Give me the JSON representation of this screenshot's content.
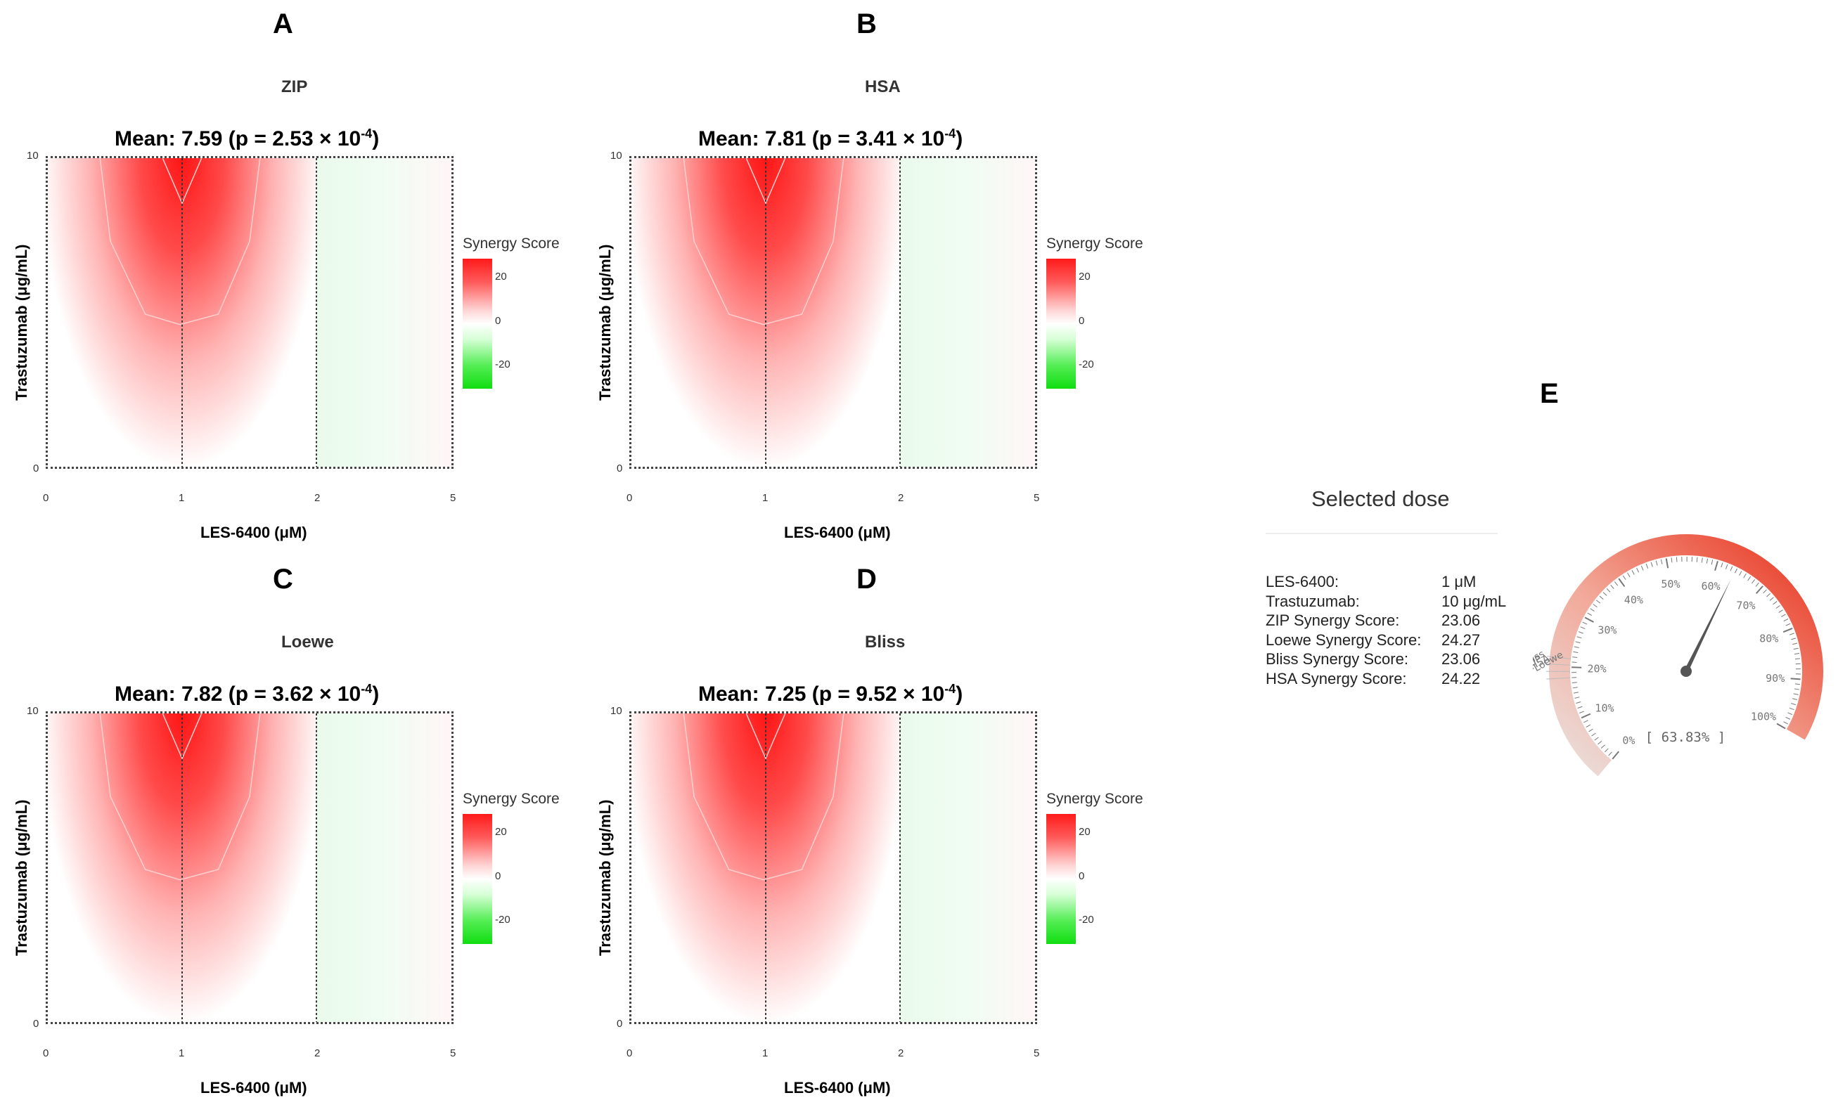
{
  "panels": [
    {
      "letter": "A",
      "method": "ZIP",
      "mean_text": "Mean: 7.59 (p = 2.53 × 10",
      "mean_exp": "-4",
      "mean_close": ")"
    },
    {
      "letter": "B",
      "method": "HSA",
      "mean_text": "Mean: 7.81 (p = 3.41 × 10",
      "mean_exp": "-4",
      "mean_close": ")"
    },
    {
      "letter": "C",
      "method": "Loewe",
      "mean_text": "Mean: 7.82 (p = 3.62 × 10",
      "mean_exp": "-4",
      "mean_close": ")"
    },
    {
      "letter": "D",
      "method": "Bliss",
      "mean_text": "Mean: 7.25 (p = 9.52 × 10",
      "mean_exp": "-4",
      "mean_close": ")"
    }
  ],
  "axes": {
    "xlabel": "LES-6400 (μM)",
    "ylabel": "Trastuzumab (μg/mL)",
    "x_ticks": [
      "0",
      "1",
      "2",
      "5"
    ],
    "y_ticks": [
      "0",
      "10"
    ],
    "legend_title": "Synergy Score",
    "legend_ticks": [
      "20",
      "0",
      "-20"
    ]
  },
  "chart_data": [
    {
      "type": "heatmap",
      "title": "ZIP",
      "subtitle": "Mean: 7.59 (p = 2.53 × 10^-4)",
      "xlabel": "LES-6400 (μM)",
      "ylabel": "Trastuzumab (μg/mL)",
      "x": [
        "0",
        "1",
        "2",
        "5"
      ],
      "y": [
        "0",
        "10"
      ],
      "legend": "Synergy Score",
      "color_range": [
        -20,
        20
      ],
      "max_synergy_at": {
        "x": "1",
        "y": "10"
      }
    },
    {
      "type": "heatmap",
      "title": "HSA",
      "subtitle": "Mean: 7.81 (p = 3.41 × 10^-4)",
      "xlabel": "LES-6400 (μM)",
      "ylabel": "Trastuzumab (μg/mL)",
      "x": [
        "0",
        "1",
        "2",
        "5"
      ],
      "y": [
        "0",
        "10"
      ],
      "legend": "Synergy Score",
      "color_range": [
        -20,
        20
      ],
      "max_synergy_at": {
        "x": "1",
        "y": "10"
      }
    },
    {
      "type": "heatmap",
      "title": "Loewe",
      "subtitle": "Mean: 7.82 (p = 3.62 × 10^-4)",
      "xlabel": "LES-6400 (μM)",
      "ylabel": "Trastuzumab (μg/mL)",
      "x": [
        "0",
        "1",
        "2",
        "5"
      ],
      "y": [
        "0",
        "10"
      ],
      "legend": "Synergy Score",
      "color_range": [
        -20,
        20
      ],
      "max_synergy_at": {
        "x": "1",
        "y": "10"
      }
    },
    {
      "type": "heatmap",
      "title": "Bliss",
      "subtitle": "Mean: 7.25 (p = 9.52 × 10^-4)",
      "xlabel": "LES-6400 (μM)",
      "ylabel": "Trastuzumab (μg/mL)",
      "x": [
        "0",
        "1",
        "2",
        "5"
      ],
      "y": [
        "0",
        "10"
      ],
      "legend": "Synergy Score",
      "color_range": [
        -20,
        20
      ],
      "max_synergy_at": {
        "x": "1",
        "y": "10"
      }
    }
  ],
  "panel_e": {
    "letter": "E",
    "title": "Selected dose",
    "rows": [
      {
        "label": "LES-6400:",
        "value": "1 μM"
      },
      {
        "label": "Trastuzumab:",
        "value": "10 μg/mL"
      },
      {
        "label": "ZIP Synergy Score:",
        "value": "23.06"
      },
      {
        "label": "Loewe Synergy Score:",
        "value": "24.27"
      },
      {
        "label": "Bliss Synergy Score:",
        "value": "23.06"
      },
      {
        "label": "HSA Synergy Score:",
        "value": "24.22"
      }
    ],
    "gauge": {
      "value_percent": 63.83,
      "readout": "[ 63.83% ]",
      "ticks": [
        "0%",
        "10%",
        "20%",
        "30%",
        "40%",
        "50%",
        "60%",
        "70%",
        "80%",
        "90%",
        "100%"
      ],
      "markers": [
        "Bliss",
        "ZIP",
        "HSA",
        "Loewe"
      ],
      "colors": {
        "low": "#e9dcd8",
        "high": "#e8351f",
        "needle": "#555555"
      }
    }
  }
}
